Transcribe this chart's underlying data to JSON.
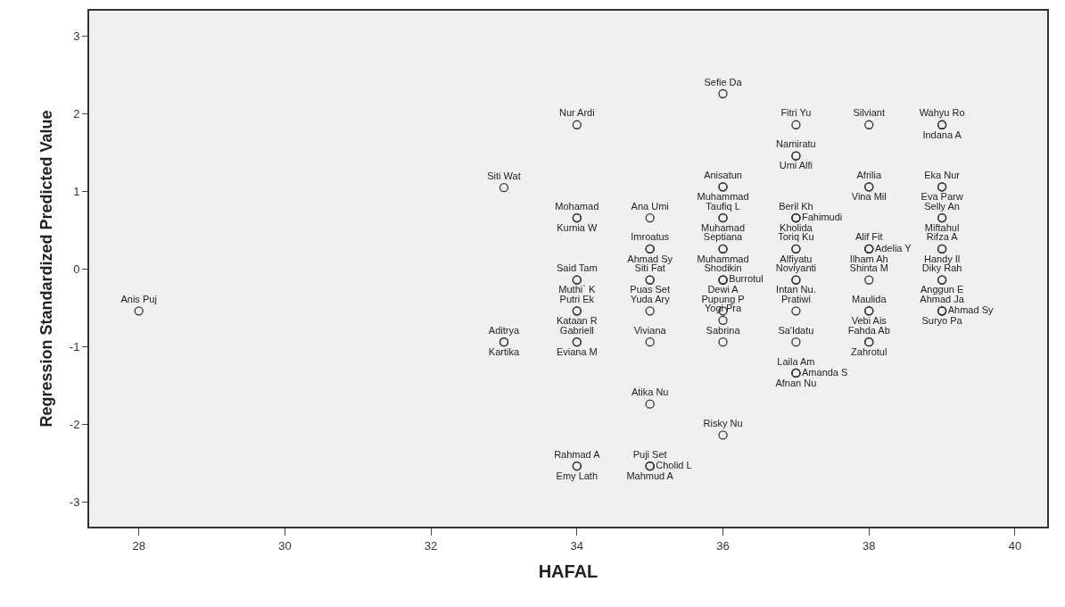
{
  "chart_data": {
    "type": "scatter",
    "xlabel": "HAFAL",
    "ylabel": "Regression Standardized Predicted Value",
    "x": [
      28,
      33,
      33,
      33,
      34,
      34,
      34,
      34,
      34,
      34,
      34,
      34,
      34,
      34,
      34,
      35,
      35,
      35,
      35,
      35,
      35,
      35,
      35,
      35,
      35,
      35,
      36,
      36,
      36,
      36,
      36,
      36,
      36,
      36,
      36,
      36,
      36,
      36,
      36,
      36,
      37,
      37,
      37,
      37,
      37,
      37,
      37,
      37,
      37,
      37,
      37,
      37,
      37,
      37,
      37,
      38,
      38,
      38,
      38,
      38,
      38,
      38,
      38,
      38,
      38,
      38,
      39,
      39,
      39,
      39,
      39,
      39,
      39,
      39,
      39,
      39,
      39,
      39,
      39
    ],
    "values": [
      -0.54,
      1.05,
      -0.94,
      -0.94,
      1.86,
      0.66,
      0.66,
      -0.14,
      -0.14,
      -0.54,
      -0.54,
      -0.94,
      -0.94,
      -2.54,
      -2.54,
      0.66,
      0.26,
      0.26,
      -0.14,
      -0.14,
      -0.54,
      -0.94,
      -1.74,
      -2.54,
      -2.54,
      -2.54,
      2.26,
      1.06,
      1.06,
      0.66,
      0.66,
      0.26,
      0.26,
      -0.14,
      -0.14,
      -0.14,
      -0.54,
      -0.66,
      -0.94,
      -2.14,
      1.86,
      1.46,
      1.46,
      0.66,
      0.66,
      0.66,
      0.26,
      0.26,
      -0.14,
      -0.14,
      -0.54,
      -0.94,
      -1.34,
      -1.34,
      -1.34,
      1.86,
      1.06,
      1.06,
      0.26,
      0.26,
      0.26,
      -0.14,
      -0.54,
      -0.54,
      -0.94,
      -0.94,
      1.86,
      1.86,
      1.06,
      1.06,
      0.66,
      0.66,
      0.26,
      0.26,
      -0.14,
      -0.14,
      -0.54,
      -0.54,
      -0.54
    ],
    "value_labels": [
      "Anis Puj",
      "Siti Wat",
      "Aditrya",
      "Kartika",
      "Nur Ardi",
      "Mohamad",
      "Kurnia W",
      "Said Tam",
      "Muthi` K",
      "Putri Ek",
      "Kataan R",
      "Gabriell",
      "Eviana M",
      "Rahmad A",
      "Emy Lath",
      "Ana Umi",
      "Imroatus",
      "Ahmad Sy",
      "Siti Fat",
      "Puas Set",
      "Yuda Ary",
      "Viviana",
      "Atika Nu",
      "Puji Set",
      "Mahmud A",
      "Cholid L",
      "Sefie Da",
      "Anisatun",
      "Muhammad",
      "Taufiq L",
      "Muhamad",
      "Septiana",
      "Muhammad",
      "Shodikin",
      "Dewi A",
      "Burrotul",
      "Pupung P",
      "Yogi Pra",
      "Sabrina",
      "Risky Nu",
      "Fitri Yu",
      "Namiratu",
      "Umi Alfi",
      "Beril Kh",
      "Kholida",
      "Fahimudi",
      "Toriq Ku",
      "Alfiyatu",
      "Noviyanti",
      "Intan Nu.",
      "Pratiwi",
      "Sa'Idatu",
      "Laila Am",
      "Afnan Nu",
      "Amanda S",
      "Silviant",
      "Afrilia",
      "Vina Mil",
      "Alif Fit",
      "Ilham Ah",
      "Adelia Y",
      "Shinta M",
      "Maulida",
      "Vebi Ais",
      "Fahda Ab",
      "Zahrotul",
      "Wahyu Ro",
      "Indana A",
      "Eka Nur",
      "Eva Parw",
      "Selly An",
      "Miftahul",
      "Rifza A",
      "Handy Il",
      "Diky Rah",
      "Anggun E",
      "Ahmad Ja",
      "Suryo Pa",
      "Ahmad Sy"
    ],
    "color": "#333333",
    "marker": "circle",
    "xlim": [
      27.32,
      40.44
    ],
    "xticks": [
      28,
      30,
      32,
      34,
      36,
      38,
      40
    ],
    "ylim": [
      -3.32,
      3.33
    ],
    "yticks": [
      -3,
      -2,
      -1,
      0,
      1,
      2,
      3
    ],
    "grid": false,
    "legend": false
  }
}
